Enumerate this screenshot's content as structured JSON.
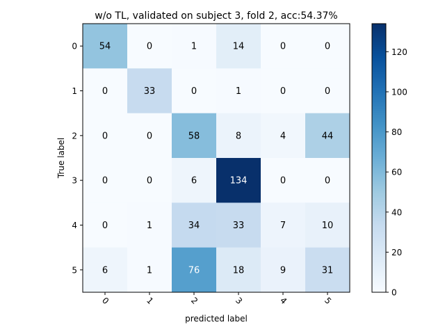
{
  "chart_data": {
    "type": "heatmap",
    "title": "w/o TL, validated on subject 3, fold 2, acc:54.37%",
    "xlabel": "predicted label",
    "ylabel": "True label",
    "x_categories": [
      "0",
      "1",
      "2",
      "3",
      "4",
      "5"
    ],
    "y_categories": [
      "0",
      "1",
      "2",
      "3",
      "4",
      "5"
    ],
    "matrix": [
      [
        54,
        0,
        1,
        14,
        0,
        0
      ],
      [
        0,
        33,
        0,
        1,
        0,
        0
      ],
      [
        0,
        0,
        58,
        8,
        4,
        44
      ],
      [
        0,
        0,
        6,
        134,
        0,
        0
      ],
      [
        0,
        1,
        34,
        33,
        7,
        10
      ],
      [
        6,
        1,
        76,
        18,
        9,
        31
      ]
    ],
    "colormap": "Blues",
    "colorbar": {
      "range": [
        0,
        134
      ],
      "ticks": [
        "0",
        "20",
        "40",
        "60",
        "80",
        "100",
        "120"
      ]
    },
    "grid": false,
    "x_tick_rotation": "45"
  }
}
